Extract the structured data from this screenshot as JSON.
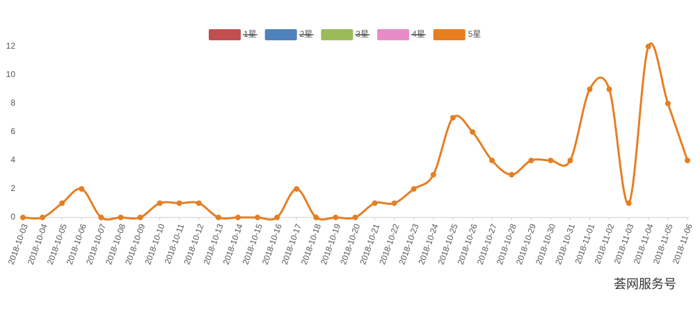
{
  "chart_data": {
    "type": "line",
    "categories": [
      "2018-10-03",
      "2018-10-04",
      "2018-10-05",
      "2018-10-06",
      "2018-10-07",
      "2018-10-08",
      "2018-10-09",
      "2018-10-10",
      "2018-10-11",
      "2018-10-12",
      "2018-10-13",
      "2018-10-14",
      "2018-10-15",
      "2018-10-16",
      "2018-10-17",
      "2018-10-18",
      "2018-10-19",
      "2018-10-20",
      "2018-10-21",
      "2018-10-22",
      "2018-10-23",
      "2018-10-24",
      "2018-10-25",
      "2018-10-26",
      "2018-10-27",
      "2018-10-28",
      "2018-10-29",
      "2018-10-30",
      "2018-10-31",
      "2018-11-01",
      "2018-11-02",
      "2018-11-03",
      "2018-11-04",
      "2018-11-05",
      "2018-11-06"
    ],
    "series": [
      {
        "name": "1星",
        "color": "#c0504d",
        "visible": false
      },
      {
        "name": "2星",
        "color": "#4f81bd",
        "visible": false
      },
      {
        "name": "3星",
        "color": "#9bbb59",
        "visible": false
      },
      {
        "name": "4星",
        "color": "#e98bc8",
        "visible": false
      },
      {
        "name": "5星",
        "color": "#e67e22",
        "visible": true,
        "values": [
          0,
          0,
          1,
          2,
          0,
          0,
          0,
          1,
          1,
          1,
          0,
          0,
          0,
          0,
          2,
          0,
          0,
          0,
          1,
          1,
          2,
          3,
          7,
          6,
          4,
          3,
          4,
          4,
          4,
          9,
          9,
          1,
          12,
          8,
          4
        ]
      }
    ],
    "ylim": [
      0,
      12
    ],
    "yticks": [
      0,
      2,
      4,
      6,
      8,
      10,
      12
    ],
    "smooth": true
  },
  "watermark": "荟网服务号"
}
